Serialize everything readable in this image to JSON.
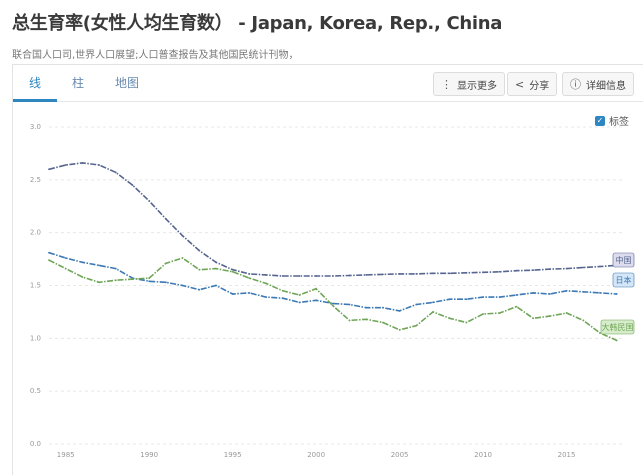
{
  "title": "总生育率(女性人均生育数） - Japan, Korea, Rep., China",
  "source": "联合国人口司,世界人口展望;人口普查报告及其他国民统计刊物，",
  "tabs": [
    "线",
    "柱",
    "地图"
  ],
  "toolbar": {
    "more_label": "显示更多",
    "share_label": "分享",
    "details_label": "详细信息"
  },
  "legend_label": "标签",
  "colors": {
    "china": "#56658f",
    "japan": "#3b78b4",
    "korea": "#6ea556",
    "accent": "#2e86c1"
  },
  "chart_data": {
    "type": "line",
    "title": "",
    "xlabel": "",
    "ylabel": "",
    "x": [
      1984,
      1985,
      1986,
      1987,
      1988,
      1989,
      1990,
      1991,
      1992,
      1993,
      1994,
      1995,
      1996,
      1997,
      1998,
      1999,
      2000,
      2001,
      2002,
      2003,
      2004,
      2005,
      2006,
      2007,
      2008,
      2009,
      2010,
      2011,
      2012,
      2013,
      2014,
      2015,
      2016,
      2017,
      2018
    ],
    "xlim": [
      1984,
      2018.5
    ],
    "ylim": [
      0,
      3.0
    ],
    "x_ticks": [
      "1985",
      "1990",
      "1995",
      "2000",
      "2005",
      "2010",
      "2015"
    ],
    "y_ticks": [
      "0.0",
      "0.5",
      "1.0",
      "1.5",
      "2.0",
      "2.5",
      "3.0"
    ],
    "series": [
      {
        "name": "中国",
        "key": "china",
        "values": [
          2.6,
          2.64,
          2.66,
          2.64,
          2.57,
          2.45,
          2.3,
          2.13,
          1.97,
          1.83,
          1.72,
          1.65,
          1.61,
          1.6,
          1.59,
          1.59,
          1.59,
          1.59,
          1.595,
          1.6,
          1.605,
          1.61,
          1.61,
          1.615,
          1.615,
          1.62,
          1.625,
          1.63,
          1.64,
          1.645,
          1.655,
          1.66,
          1.67,
          1.68,
          1.69
        ]
      },
      {
        "name": "日本",
        "key": "japan",
        "values": [
          1.81,
          1.76,
          1.72,
          1.69,
          1.66,
          1.57,
          1.54,
          1.53,
          1.5,
          1.46,
          1.5,
          1.42,
          1.43,
          1.39,
          1.38,
          1.34,
          1.36,
          1.33,
          1.32,
          1.29,
          1.29,
          1.26,
          1.32,
          1.34,
          1.37,
          1.37,
          1.39,
          1.39,
          1.41,
          1.43,
          1.42,
          1.45,
          1.44,
          1.43,
          1.42
        ]
      },
      {
        "name": "大韩民国",
        "key": "korea",
        "values": [
          1.74,
          1.66,
          1.58,
          1.53,
          1.55,
          1.56,
          1.57,
          1.71,
          1.76,
          1.65,
          1.66,
          1.63,
          1.57,
          1.52,
          1.45,
          1.41,
          1.47,
          1.31,
          1.17,
          1.18,
          1.15,
          1.08,
          1.12,
          1.25,
          1.19,
          1.15,
          1.23,
          1.24,
          1.3,
          1.19,
          1.21,
          1.24,
          1.17,
          1.05,
          0.98
        ]
      }
    ]
  }
}
